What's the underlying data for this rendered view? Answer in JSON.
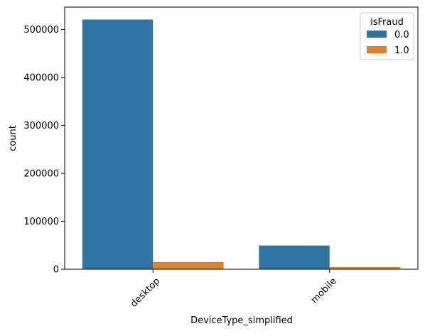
{
  "chart_data": {
    "type": "bar",
    "categories": [
      "desktop",
      "mobile"
    ],
    "series": [
      {
        "name": "0.0",
        "values": [
          521000,
          49500
        ],
        "color": "#3274a1"
      },
      {
        "name": "1.0",
        "values": [
          15000,
          4500
        ],
        "color": "#e1812c"
      }
    ],
    "title": "",
    "xlabel": "DeviceType_simplified",
    "ylabel": "count",
    "ylim": [
      0,
      547000
    ],
    "yticks": [
      0,
      100000,
      200000,
      300000,
      400000,
      500000
    ],
    "ytick_labels": [
      "0",
      "100000",
      "200000",
      "300000",
      "400000",
      "500000"
    ],
    "legend_title": "isFraud",
    "legend_position": "upper right",
    "grid": false
  }
}
